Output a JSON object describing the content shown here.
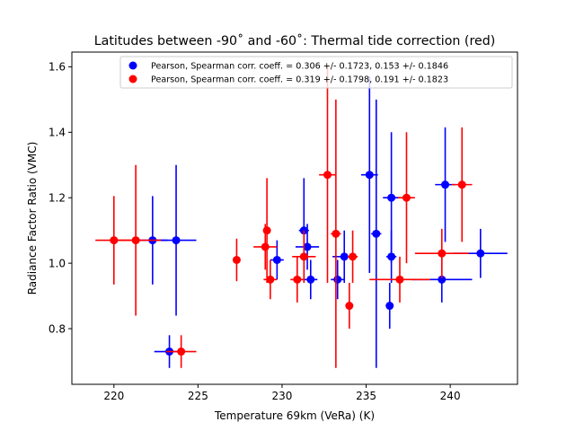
{
  "chart_data": {
    "type": "scatter",
    "title": "Latitudes between -90˚ and -60˚: Thermal tide correction (red)",
    "xlabel": "Temperature 69km (VeRa) (K)",
    "ylabel": "Radiance Factor Ratio (VMC)",
    "xlim": [
      217.5,
      244.0
    ],
    "ylim": [
      0.63,
      1.645
    ],
    "xticks": [
      220,
      225,
      230,
      235,
      240
    ],
    "yticks": [
      0.8,
      1.0,
      1.2,
      1.4,
      1.6
    ],
    "legend_position": "top-right",
    "grid": false,
    "series": [
      {
        "name": "Pearson, Spearman corr. coeff. =  0.306 +/-  0.1723,  0.153 +/-  0.1846",
        "color": "#0000ff",
        "points": [
          {
            "x": 222.3,
            "y": 1.07,
            "xerr": 0.9,
            "yerr": 0.135
          },
          {
            "x": 223.7,
            "y": 1.07,
            "xerr": 1.2,
            "yerr": 0.23
          },
          {
            "x": 223.3,
            "y": 0.73,
            "xerr": 0.9,
            "yerr": 0.05
          },
          {
            "x": 229.7,
            "y": 1.01,
            "xerr": 0.4,
            "yerr": 0.06
          },
          {
            "x": 231.3,
            "y": 1.1,
            "xerr": 0.3,
            "yerr": 0.16
          },
          {
            "x": 231.5,
            "y": 1.05,
            "xerr": 0.7,
            "yerr": 0.07
          },
          {
            "x": 231.7,
            "y": 0.95,
            "xerr": 0.4,
            "yerr": 0.06
          },
          {
            "x": 233.3,
            "y": 0.95,
            "xerr": 0.4,
            "yerr": 0.06
          },
          {
            "x": 233.7,
            "y": 1.02,
            "xerr": 0.7,
            "yerr": 0.08
          },
          {
            "x": 235.2,
            "y": 1.27,
            "xerr": 0.5,
            "yerr": 0.3
          },
          {
            "x": 235.6,
            "y": 1.09,
            "xerr": 0.3,
            "yerr": 0.41
          },
          {
            "x": 236.4,
            "y": 0.87,
            "xerr": 0.2,
            "yerr": 0.07
          },
          {
            "x": 236.5,
            "y": 1.2,
            "xerr": 0.5,
            "yerr": 0.2
          },
          {
            "x": 236.5,
            "y": 1.02,
            "xerr": 0.3,
            "yerr": 0.08
          },
          {
            "x": 239.5,
            "y": 0.95,
            "xerr": 1.8,
            "yerr": 0.07
          },
          {
            "x": 239.7,
            "y": 1.24,
            "xerr": 0.6,
            "yerr": 0.175
          },
          {
            "x": 241.8,
            "y": 1.03,
            "xerr": 1.6,
            "yerr": 0.075
          }
        ]
      },
      {
        "name": "Pearson, Spearman corr. coeff. =  0.319 +/-  0.1798,  0.191 +/-  0.1823",
        "color": "#ff0000",
        "points": [
          {
            "x": 220.0,
            "y": 1.07,
            "xerr": 1.1,
            "yerr": 0.135
          },
          {
            "x": 221.3,
            "y": 1.07,
            "xerr": 1.5,
            "yerr": 0.23
          },
          {
            "x": 224.0,
            "y": 0.73,
            "xerr": 0.9,
            "yerr": 0.05
          },
          {
            "x": 227.3,
            "y": 1.01,
            "xerr": 0.2,
            "yerr": 0.065
          },
          {
            "x": 229.0,
            "y": 1.05,
            "xerr": 0.7,
            "yerr": 0.07
          },
          {
            "x": 229.1,
            "y": 1.1,
            "xerr": 0.2,
            "yerr": 0.16
          },
          {
            "x": 229.3,
            "y": 0.95,
            "xerr": 0.4,
            "yerr": 0.06
          },
          {
            "x": 230.9,
            "y": 0.95,
            "xerr": 0.4,
            "yerr": 0.07
          },
          {
            "x": 231.3,
            "y": 1.02,
            "xerr": 0.7,
            "yerr": 0.08
          },
          {
            "x": 232.7,
            "y": 1.27,
            "xerr": 0.5,
            "yerr": 0.33
          },
          {
            "x": 233.2,
            "y": 1.09,
            "xerr": 0.3,
            "yerr": 0.41
          },
          {
            "x": 234.0,
            "y": 0.87,
            "xerr": 0.2,
            "yerr": 0.07
          },
          {
            "x": 234.2,
            "y": 1.02,
            "xerr": 0.3,
            "yerr": 0.08
          },
          {
            "x": 237.0,
            "y": 0.95,
            "xerr": 1.8,
            "yerr": 0.07
          },
          {
            "x": 237.4,
            "y": 1.2,
            "xerr": 0.5,
            "yerr": 0.2
          },
          {
            "x": 239.5,
            "y": 1.03,
            "xerr": 1.6,
            "yerr": 0.075
          },
          {
            "x": 240.7,
            "y": 1.24,
            "xerr": 0.6,
            "yerr": 0.175
          }
        ]
      }
    ]
  }
}
